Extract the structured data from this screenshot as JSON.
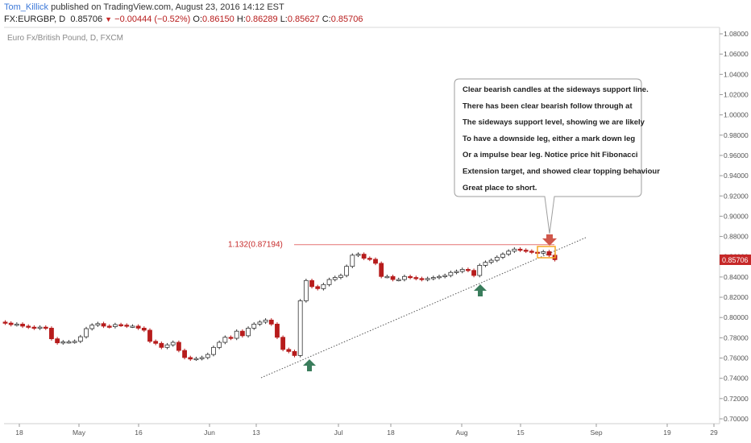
{
  "header": {
    "author": "Tom_Killick",
    "published": "published on TradingView.com, August 23, 2016 14:12 EST",
    "symbol": "FX:EURGBP, D",
    "last": "0.85706",
    "change": "−0.00444 (−0.52%)",
    "o_label": "O:",
    "open": "0.86150",
    "h_label": "H:",
    "high": "0.86289",
    "l_label": "L:",
    "low": "0.85627",
    "c_label": "C:",
    "close": "0.85706"
  },
  "chart_data": {
    "type": "candlestick",
    "title": "Euro Fx/British Pound, D, FXCM",
    "ylim": [
      0.695,
      1.085
    ],
    "y_ticks": [
      "1.08000",
      "1.06000",
      "1.04000",
      "1.02000",
      "1.00000",
      "0.98000",
      "0.96000",
      "0.94000",
      "0.92000",
      "0.90000",
      "0.88000",
      "0.86000",
      "0.84000",
      "0.82000",
      "0.80000",
      "0.78000",
      "0.76000",
      "0.74000",
      "0.72000",
      "0.70000"
    ],
    "x_ticks": [
      "18",
      "May",
      "16",
      "Jun",
      "13",
      "Jul",
      "18",
      "Aug",
      "15",
      "Sep",
      "19",
      "29"
    ],
    "last_price_label": "0.85706",
    "fib_label": "1.132(0.87194)",
    "fib_level": 0.87194,
    "annotation_lines": [
      "Clear bearish candles at the sideways support line.",
      "There has been clear bearish follow through at",
      "The sideways support level, showing we are likely",
      "To have a downside leg, either a mark down leg",
      "Or a impulse bear leg. Notice price hit Fibonacci",
      "Extension target, and showed clear topping behaviour",
      "Great place to short."
    ],
    "closes": [
      0.7945,
      0.793,
      0.7935,
      0.7915,
      0.7905,
      0.7895,
      0.7905,
      0.7895,
      0.779,
      0.775,
      0.776,
      0.776,
      0.7765,
      0.781,
      0.789,
      0.7925,
      0.794,
      0.7915,
      0.791,
      0.793,
      0.7925,
      0.7915,
      0.7915,
      0.7895,
      0.7875,
      0.7765,
      0.7745,
      0.7705,
      0.773,
      0.7755,
      0.7675,
      0.7605,
      0.759,
      0.7595,
      0.7605,
      0.7635,
      0.7705,
      0.7755,
      0.7805,
      0.7795,
      0.7865,
      0.782,
      0.7895,
      0.7935,
      0.7955,
      0.7975,
      0.7935,
      0.7805,
      0.7685,
      0.7665,
      0.7625,
      0.8165,
      0.8365,
      0.8305,
      0.8285,
      0.8325,
      0.8375,
      0.8395,
      0.8415,
      0.8505,
      0.8615,
      0.8625,
      0.8585,
      0.8575,
      0.8535,
      0.8405,
      0.8405,
      0.8375,
      0.8375,
      0.8405,
      0.8395,
      0.8385,
      0.8375,
      0.8385,
      0.8395,
      0.8405,
      0.8415,
      0.8445,
      0.8455,
      0.8475,
      0.8465,
      0.8415,
      0.8515,
      0.8545,
      0.8565,
      0.8595,
      0.8625,
      0.8655,
      0.8675,
      0.8665,
      0.8655,
      0.8645,
      0.8635,
      0.865,
      0.8615,
      0.8571
    ]
  }
}
